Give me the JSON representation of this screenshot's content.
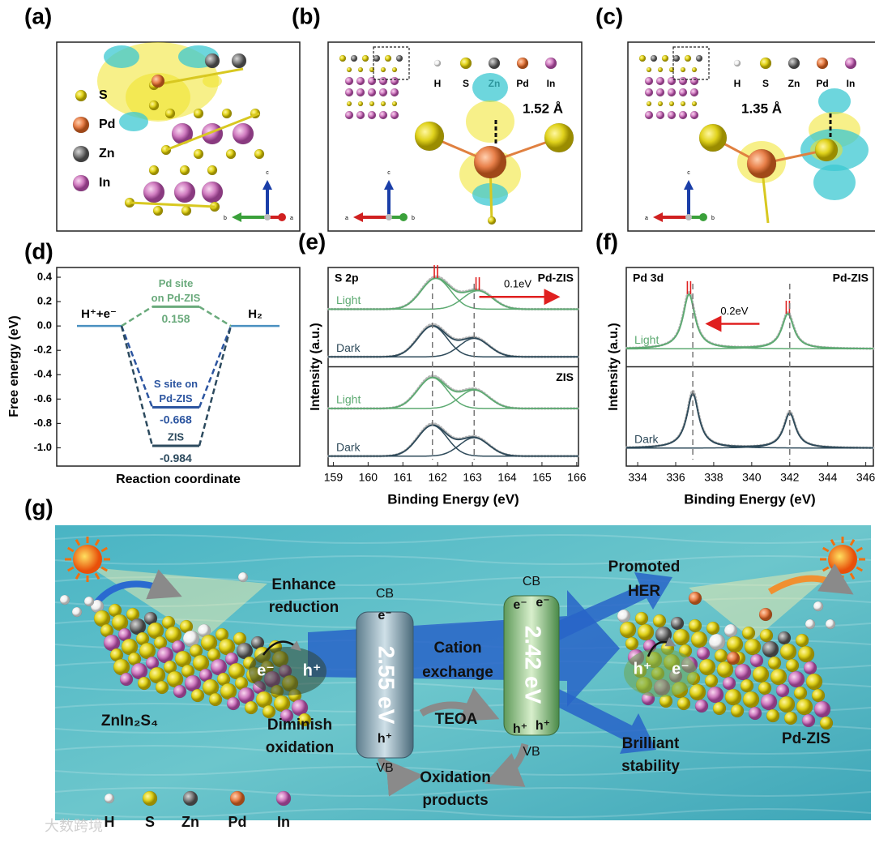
{
  "a": {
    "label": "(a)",
    "legend": [
      "S",
      "Pd",
      "Zn",
      "In"
    ],
    "axes": {
      "up": "c",
      "left": "b",
      "right": "a"
    }
  },
  "b": {
    "label": "(b)",
    "legend": [
      "H",
      "S",
      "Zn",
      "Pd",
      "In"
    ],
    "distance": "1.52 Å",
    "axes": {
      "up": "c",
      "left": "a",
      "right": "b"
    }
  },
  "c": {
    "label": "(c)",
    "legend": [
      "H",
      "S",
      "Zn",
      "Pd",
      "In"
    ],
    "distance": "1.35 Å",
    "axes": {
      "up": "c",
      "left": "a",
      "right": "b"
    }
  },
  "d": {
    "label": "(d)",
    "ylabel": "Free energy (eV)",
    "xlabel": "Reaction coordinate",
    "ylim": [
      -1.15,
      0.48
    ],
    "yticks": [
      0.4,
      0.2,
      {
        "value": 0,
        "label": "0.0"
      },
      -0.2,
      -0.4,
      -0.6,
      -0.8,
      {
        "value": -1,
        "label": "-1.0"
      }
    ],
    "start": {
      "label": "H⁺+e⁻",
      "value": 0,
      "color": "#4a90c0"
    },
    "end": {
      "label": "H₂",
      "value": 0,
      "color": "#4a90c0"
    },
    "sites": [
      {
        "label": [
          "Pd site",
          "on Pd-ZIS"
        ],
        "value": 0.158,
        "color": "#6aaa7c"
      },
      {
        "label": [
          "S site on",
          "Pd-ZIS"
        ],
        "value": -0.668,
        "color": "#2c55a0"
      },
      {
        "label": [
          "ZIS"
        ],
        "value": -0.984,
        "color": "#2c4a5e"
      }
    ]
  },
  "e": {
    "label": "(e)",
    "xlabel": "Binding Energy (eV)",
    "ylabel": "Intensity (a.u.)",
    "xlim": [
      158.85,
      166.05
    ],
    "xticks": [
      159,
      160,
      161,
      162,
      163,
      164,
      165,
      166
    ],
    "shift": {
      "label": "0.1eV",
      "direction": "right"
    },
    "subpanels": [
      {
        "title": "S 2p",
        "name": "Pd-ZIS",
        "curves": [
          {
            "label": "Light",
            "color": "#5daa72",
            "peaks": [
              161.95,
              163.15
            ]
          },
          {
            "label": "Dark",
            "color": "#2e4a5a",
            "peaks": [
              161.85,
              163.05
            ]
          }
        ]
      },
      {
        "name": "ZIS",
        "curves": [
          {
            "label": "Light",
            "color": "#5daa72",
            "peaks": [
              161.85,
              163.05
            ]
          },
          {
            "label": "Dark",
            "color": "#2e4a5a",
            "peaks": [
              161.85,
              163.05
            ]
          }
        ]
      }
    ]
  },
  "f": {
    "label": "(f)",
    "xlabel": "Binding Energy (eV)",
    "ylabel": "Intensity (a.u.)",
    "xlim": [
      333.4,
      346.4
    ],
    "xticks": [
      334,
      336,
      338,
      340,
      342,
      344,
      346
    ],
    "shift": {
      "label": "0.2eV",
      "direction": "left"
    },
    "subpanels": [
      {
        "title": "Pd 3d",
        "name": "Pd-ZIS",
        "curves": [
          {
            "label": "Light",
            "color": "#5daa72",
            "peaks": [
              336.7,
              341.9
            ]
          }
        ]
      },
      {
        "curves": [
          {
            "label": "Dark",
            "color": "#2e4a5a",
            "peaks": [
              336.9,
              342.0
            ]
          }
        ]
      }
    ]
  },
  "g": {
    "label": "(g)",
    "left_material": "ZnIn₂S₄",
    "right_material": "Pd-ZIS",
    "enhance": [
      "Enhance",
      "reduction"
    ],
    "diminish": [
      "Diminish",
      "oxidation"
    ],
    "left_pair": [
      "e⁻",
      "h⁺"
    ],
    "right_pair": [
      "h⁺",
      "e⁻"
    ],
    "zis_band": {
      "cb": "CB",
      "vb": "VB",
      "gap": "2.55 eV",
      "electrons": [
        "e⁻"
      ],
      "holes": [
        "h⁺"
      ]
    },
    "pdzis_band": {
      "cb": "CB",
      "vb": "VB",
      "gap": "2.42 eV",
      "electrons": [
        "e⁻",
        "e⁻"
      ],
      "holes": [
        "h⁺",
        "h⁺"
      ]
    },
    "exchange": [
      "Cation",
      "exchange"
    ],
    "teoa": "TEOA",
    "products": [
      "Oxidation",
      "products"
    ],
    "her": [
      "Promoted",
      "HER"
    ],
    "stability": [
      "Brilliant",
      "stability"
    ],
    "legend": [
      "H",
      "S",
      "Zn",
      "Pd",
      "In"
    ],
    "watermark": "大数跨境"
  }
}
